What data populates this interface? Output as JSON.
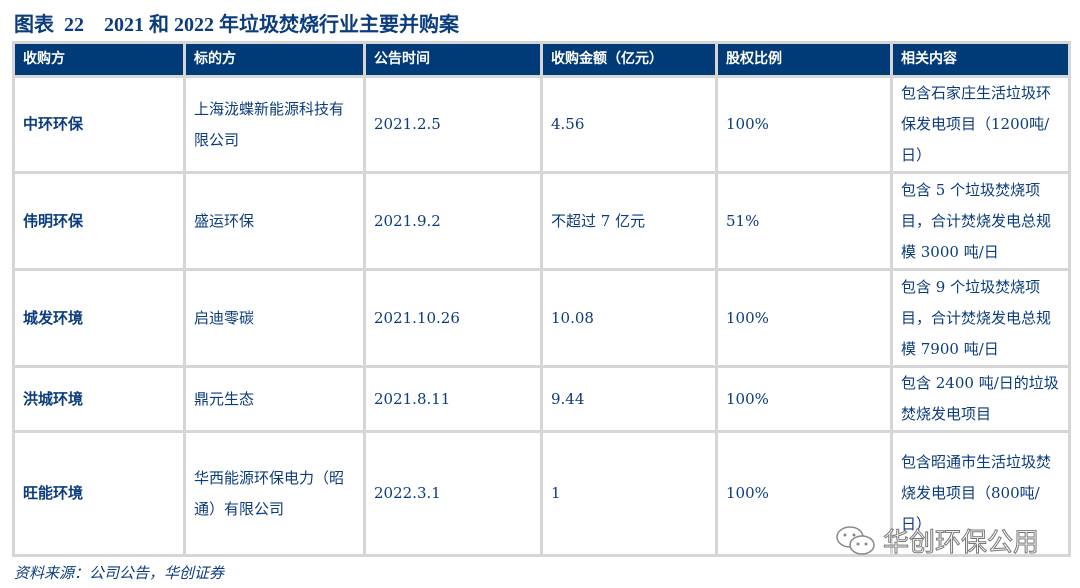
{
  "title": "图表  22    2021 和 2022 年垃圾焚烧行业主要并购案",
  "headers": [
    "收购方",
    "标的方",
    "公告时间",
    "收购金额（亿元）",
    "股权比例",
    "相关内容"
  ],
  "rows": [
    [
      "中环环保",
      "上海泷蝶新能源科技有限公司",
      "2021.2.5",
      "4.56",
      "100%",
      "包含石家庄生活垃圾环保发电项目（1200吨/日）"
    ],
    [
      "伟明环保",
      "盛运环保",
      "2021.9.2",
      "不超过 7 亿元",
      "51%",
      "包含 5 个垃圾焚烧项目，合计焚烧发电总规模 3000 吨/日"
    ],
    [
      "城发环境",
      "启迪零碳",
      "2021.10.26",
      "10.08",
      "100%",
      "包含 9 个垃圾焚烧项目，合计焚烧发电总规模 7900 吨/日"
    ],
    [
      "洪城环境",
      "鼎元生态",
      "2021.8.11",
      "9.44",
      "100%",
      "包含 2400 吨/日的垃圾焚烧发电项目"
    ],
    [
      "旺能环境",
      "华西能源环保电力（昭通）有限公司",
      "2022.3.1",
      "1",
      "100%",
      "包含昭通市生活垃圾焚烧发电项目（800吨/日）"
    ]
  ],
  "source": "资料来源：公司公告，华创证券",
  "watermark": "华创环保公用",
  "colors": {
    "header_bg": "#003b78",
    "text": "#0b3c7d",
    "border": "#d6d6d6"
  }
}
